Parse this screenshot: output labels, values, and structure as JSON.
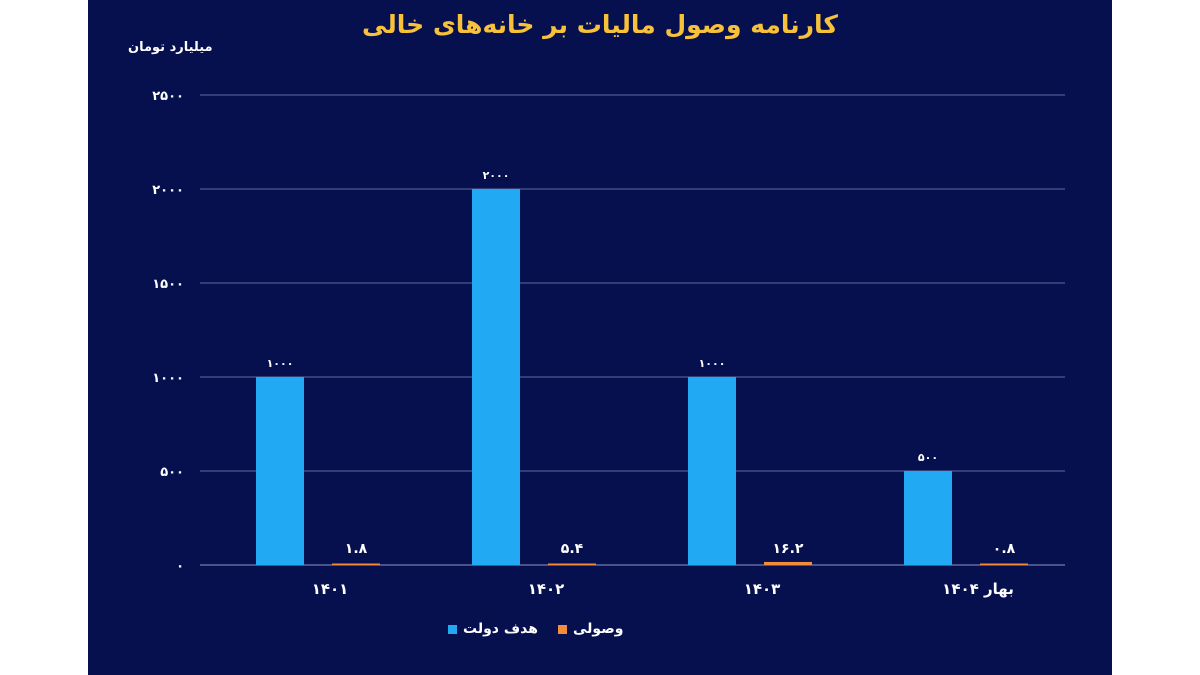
{
  "colors": {
    "background": "#06104f",
    "title": "#f7c23a",
    "target": "#22a9f4",
    "collected": "#f28c3a",
    "grid": "#5a6a9e"
  },
  "chart_data": {
    "type": "bar",
    "title": "کارنامه وصول مالیات بر خانه‌های خالی",
    "ylabel": "میلیارد تومان",
    "xlabel": "",
    "ylim": [
      0,
      2500
    ],
    "yticks": [
      0,
      500,
      1000,
      1500,
      2000,
      2500
    ],
    "ytick_labels": [
      "۰",
      "۵۰۰",
      "۱۰۰۰",
      "۱۵۰۰",
      "۲۰۰۰",
      "۲۵۰۰"
    ],
    "categories": [
      "۱۴۰۱",
      "۱۴۰۲",
      "۱۴۰۳",
      "بهار ۱۴۰۴"
    ],
    "series": [
      {
        "name": "هدف دولت",
        "color": "#22a9f4",
        "values": [
          1000,
          2000,
          1000,
          500
        ],
        "labels": [
          "۱۰۰۰",
          "۲۰۰۰",
          "۱۰۰۰",
          "۵۰۰"
        ]
      },
      {
        "name": "وصولی",
        "color": "#f28c3a",
        "values": [
          1.8,
          5.4,
          16.2,
          0.8
        ],
        "labels": [
          "۱.۸",
          "۵.۴",
          "۱۶.۲",
          "۰.۸"
        ]
      }
    ],
    "grid": true,
    "legend_position": "bottom"
  }
}
